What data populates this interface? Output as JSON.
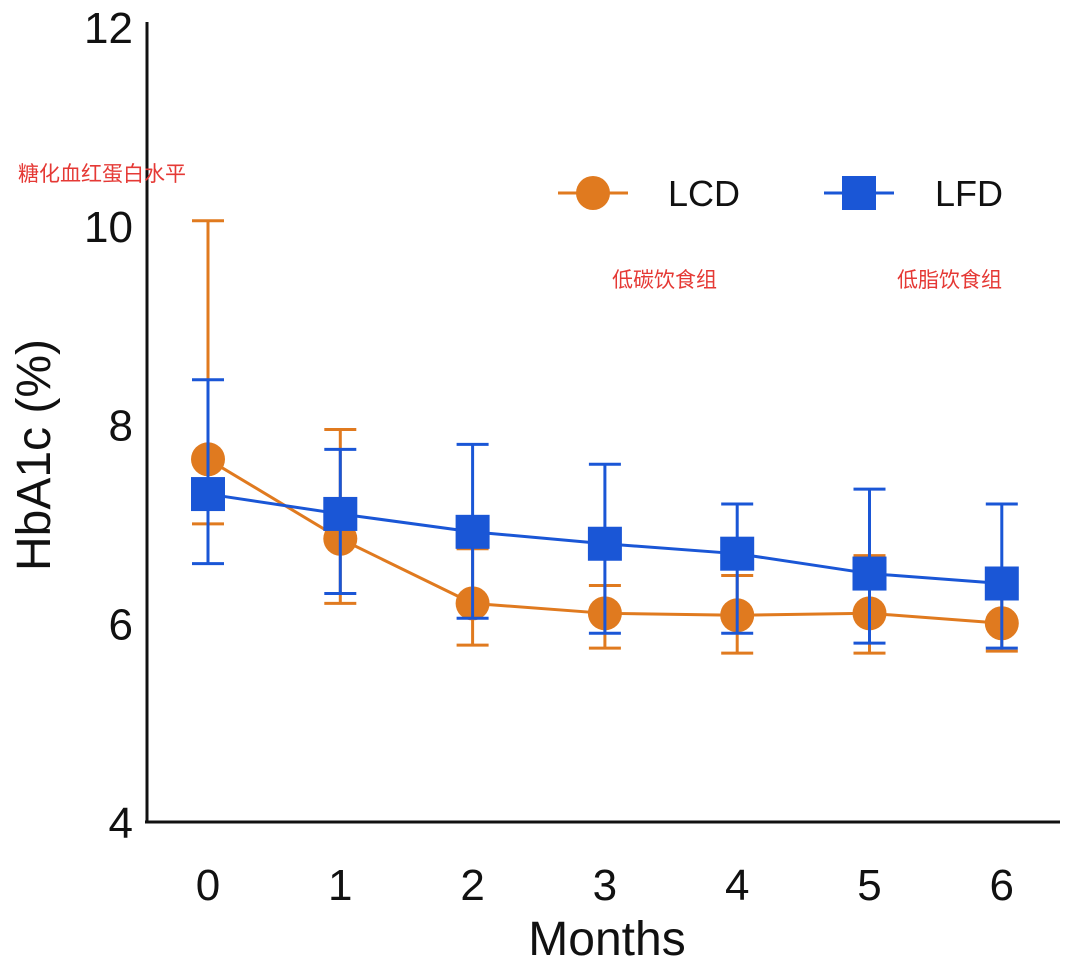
{
  "chart_data": {
    "type": "line",
    "title": "",
    "xlabel": "Months",
    "ylabel": "HbA1c (%)",
    "ylim": [
      4,
      12
    ],
    "yticks": [
      4,
      6,
      8,
      10,
      12
    ],
    "x": [
      0,
      1,
      2,
      3,
      4,
      5,
      6
    ],
    "xtick_labels": [
      "0",
      "1",
      "2",
      "3",
      "4",
      "5",
      "6"
    ],
    "legend_position": "top-right",
    "series": [
      {
        "name": "LCD",
        "color": "#e07a1f",
        "marker": "circle",
        "values": [
          7.65,
          6.85,
          6.2,
          6.1,
          6.08,
          6.1,
          6.0
        ],
        "error_upper": [
          10.05,
          7.95,
          6.75,
          6.38,
          6.48,
          6.68,
          6.28
        ],
        "error_lower": [
          7.0,
          6.2,
          5.78,
          5.75,
          5.7,
          5.7,
          5.72
        ]
      },
      {
        "name": "LFD",
        "color": "#1a56d6",
        "marker": "square",
        "values": [
          7.3,
          7.1,
          6.92,
          6.8,
          6.7,
          6.5,
          6.4
        ],
        "error_upper": [
          8.45,
          7.75,
          7.8,
          7.6,
          7.2,
          7.35,
          7.2
        ],
        "error_lower": [
          6.6,
          6.3,
          6.05,
          5.9,
          5.9,
          5.8,
          5.75
        ]
      }
    ],
    "annotations": {
      "y_axis_note": "糖化血红蛋白水平",
      "lcd_note": "低碳饮食组",
      "lfd_note": "低脂饮食组"
    }
  }
}
